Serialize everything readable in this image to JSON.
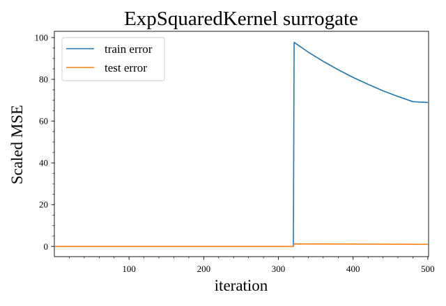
{
  "chart_data": {
    "type": "line",
    "title": "ExpSquaredKernel surrogate",
    "xlabel": "iteration",
    "ylabel": "Scaled MSE",
    "xlim": [
      0,
      501
    ],
    "ylim": [
      -4.9,
      103.0
    ],
    "xticks": [
      100,
      200,
      300,
      400,
      500
    ],
    "yticks": [
      0,
      20,
      40,
      60,
      80,
      100
    ],
    "grid": false,
    "legend_position": "top-left",
    "series": [
      {
        "name": "train error",
        "color": "#1f77b4",
        "x": [
          1,
          320,
          321,
          340,
          360,
          380,
          400,
          420,
          440,
          460,
          480,
          500
        ],
        "y": [
          0.0,
          0.0,
          97.7,
          93.0,
          88.6,
          84.6,
          80.9,
          77.6,
          74.5,
          71.8,
          69.3,
          68.9
        ]
      },
      {
        "name": "test error",
        "color": "#ff7f0e",
        "x": [
          1,
          320,
          321,
          400,
          500
        ],
        "y": [
          0.0,
          0.0,
          1.2,
          1.1,
          1.0
        ]
      }
    ]
  }
}
